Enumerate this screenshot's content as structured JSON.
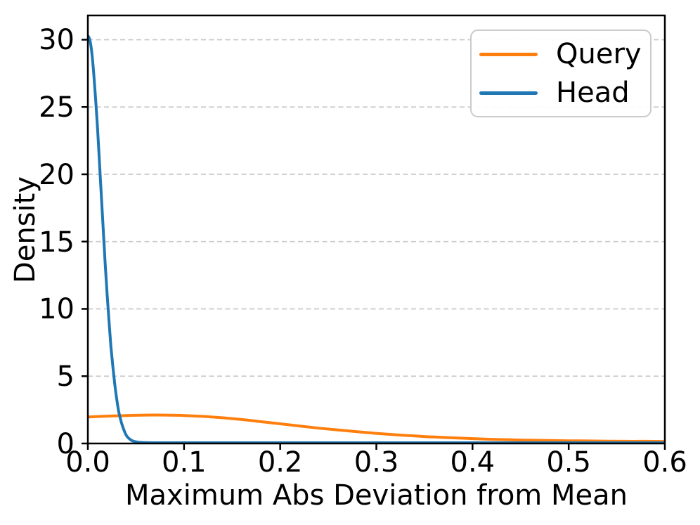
{
  "chart_data": {
    "type": "line",
    "title": "",
    "xlabel": "Maximum Abs Deviation from Mean",
    "ylabel": "Density",
    "xlim": [
      0,
      0.6
    ],
    "ylim": [
      0,
      31.8
    ],
    "xticks": {
      "values": [
        0,
        0.1,
        0.2,
        0.3,
        0.4,
        0.5,
        0.6
      ],
      "labels": [
        "0.0",
        "0.1",
        "0.2",
        "0.3",
        "0.4",
        "0.5",
        "0.6"
      ]
    },
    "yticks": {
      "values": [
        0,
        5,
        10,
        15,
        20,
        25,
        30
      ],
      "labels": [
        "0",
        "5",
        "10",
        "15",
        "20",
        "25",
        "30"
      ]
    },
    "grid": {
      "axis": "y",
      "style": "dashed",
      "color": "#c9c9c9"
    },
    "axis_color": "#000000",
    "legend": {
      "location": "upper right",
      "entries": [
        "Query",
        "Head"
      ]
    },
    "series": [
      {
        "name": "Query",
        "color": "#ff7f0e",
        "points": [
          [
            0.0,
            1.97
          ],
          [
            0.02,
            2.03
          ],
          [
            0.04,
            2.08
          ],
          [
            0.06,
            2.11
          ],
          [
            0.08,
            2.11
          ],
          [
            0.1,
            2.08
          ],
          [
            0.12,
            2.01
          ],
          [
            0.14,
            1.91
          ],
          [
            0.16,
            1.78
          ],
          [
            0.18,
            1.62
          ],
          [
            0.2,
            1.46
          ],
          [
            0.22,
            1.3
          ],
          [
            0.24,
            1.14
          ],
          [
            0.26,
            1.0
          ],
          [
            0.28,
            0.87
          ],
          [
            0.3,
            0.75
          ],
          [
            0.32,
            0.65
          ],
          [
            0.34,
            0.56
          ],
          [
            0.36,
            0.48
          ],
          [
            0.38,
            0.42
          ],
          [
            0.4,
            0.36
          ],
          [
            0.42,
            0.31
          ],
          [
            0.44,
            0.27
          ],
          [
            0.46,
            0.24
          ],
          [
            0.48,
            0.22
          ],
          [
            0.5,
            0.2
          ],
          [
            0.52,
            0.19
          ],
          [
            0.54,
            0.17
          ],
          [
            0.56,
            0.16
          ],
          [
            0.58,
            0.16
          ],
          [
            0.6,
            0.15
          ]
        ]
      },
      {
        "name": "Head",
        "color": "#1f77b4",
        "points": [
          [
            0.0,
            30.3
          ],
          [
            0.002,
            30.0
          ],
          [
            0.004,
            29.1
          ],
          [
            0.006,
            27.6
          ],
          [
            0.008,
            25.7
          ],
          [
            0.01,
            23.5
          ],
          [
            0.012,
            21.0
          ],
          [
            0.014,
            18.4
          ],
          [
            0.016,
            15.9
          ],
          [
            0.018,
            13.4
          ],
          [
            0.02,
            11.1
          ],
          [
            0.022,
            9.1
          ],
          [
            0.024,
            7.2
          ],
          [
            0.026,
            5.7
          ],
          [
            0.028,
            4.4
          ],
          [
            0.03,
            3.3
          ],
          [
            0.032,
            2.4
          ],
          [
            0.034,
            1.8
          ],
          [
            0.036,
            1.3
          ],
          [
            0.04,
            0.6
          ],
          [
            0.044,
            0.3
          ],
          [
            0.048,
            0.15
          ],
          [
            0.055,
            0.08
          ],
          [
            0.07,
            0.05
          ],
          [
            0.1,
            0.05
          ],
          [
            0.15,
            0.05
          ],
          [
            0.2,
            0.05
          ],
          [
            0.3,
            0.05
          ],
          [
            0.4,
            0.05
          ],
          [
            0.5,
            0.05
          ],
          [
            0.6,
            0.05
          ]
        ]
      }
    ]
  }
}
